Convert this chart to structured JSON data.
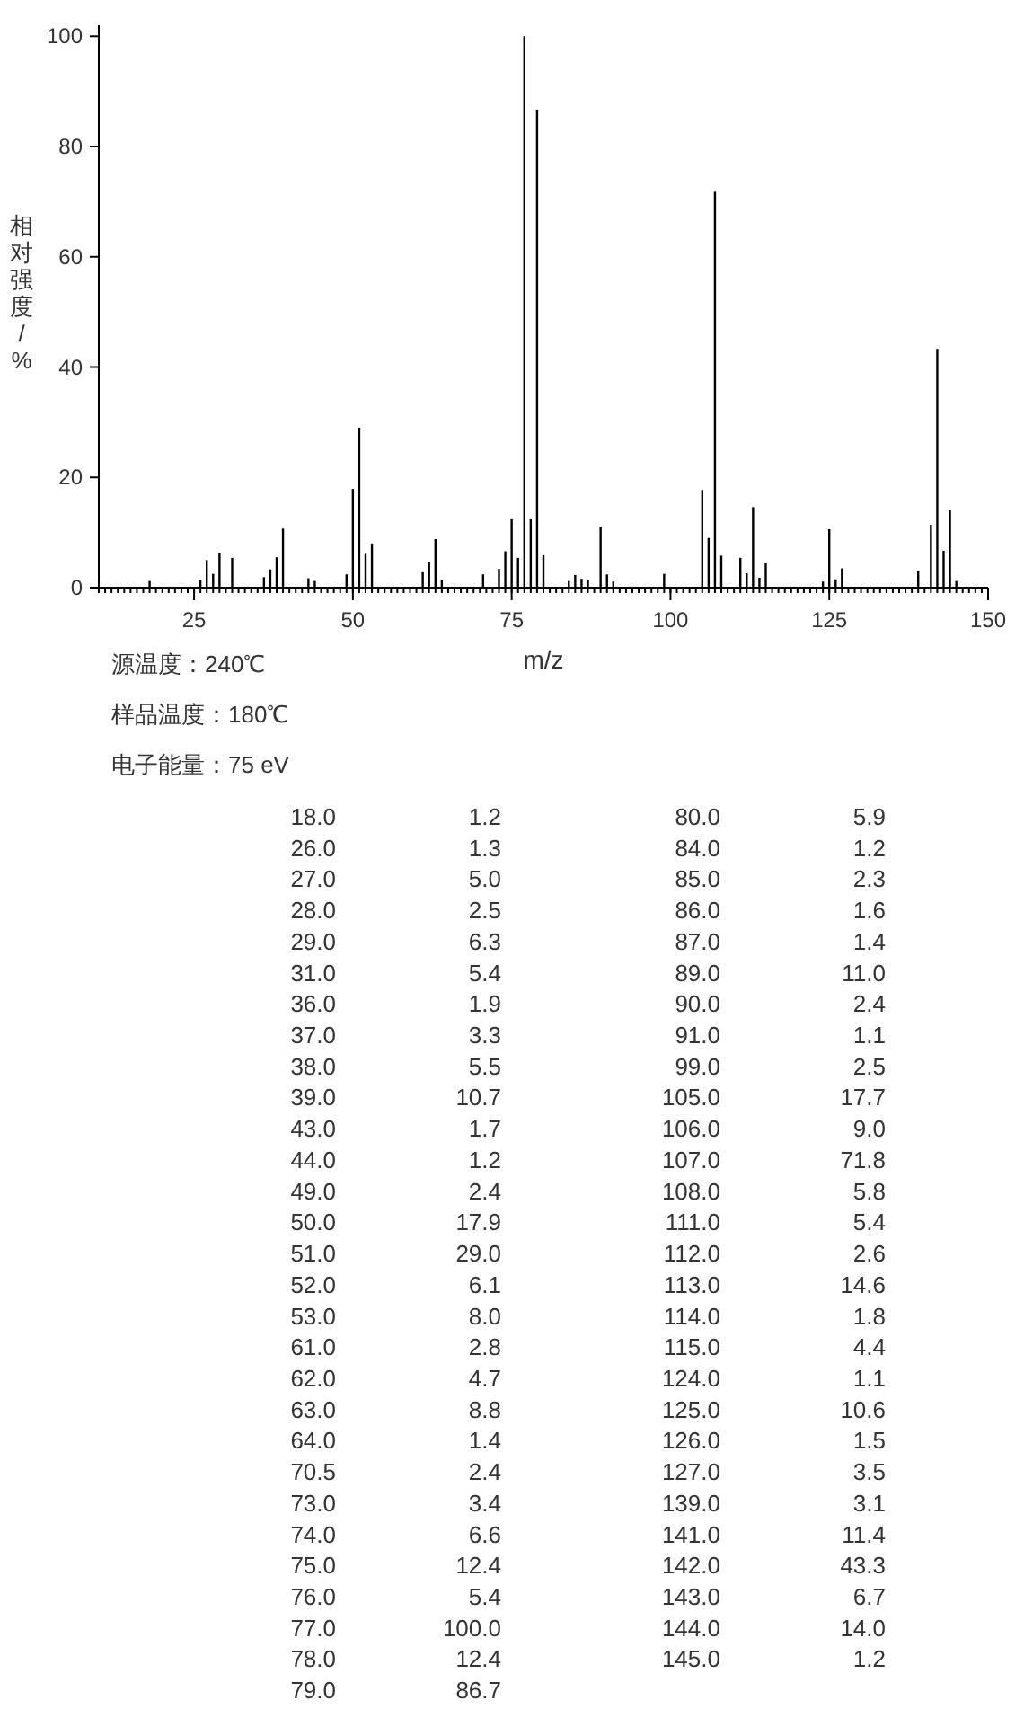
{
  "chart_data": [
    {
      "type": "bar",
      "ylabel": "相对强度/%",
      "xlabel": "m/z",
      "color": "#000000",
      "x": [
        18.0,
        26.0,
        27.0,
        28.0,
        29.0,
        31.0,
        36.0,
        37.0,
        38.0,
        39.0,
        43.0,
        44.0,
        49.0,
        50.0,
        51.0,
        52.0,
        53.0,
        61.0,
        62.0,
        63.0,
        64.0,
        70.5,
        73.0,
        74.0,
        75.0,
        76.0,
        77.0,
        78.0,
        79.0,
        80.0,
        84.0,
        85.0,
        86.0,
        87.0,
        89.0,
        90.0,
        91.0,
        99.0,
        105.0,
        106.0,
        107.0,
        108.0,
        111.0,
        112.0,
        113.0,
        114.0,
        115.0,
        124.0,
        125.0,
        126.0,
        127.0,
        139.0,
        141.0,
        142.0,
        143.0,
        144.0,
        145.0
      ],
      "values": [
        1.2,
        1.3,
        5.0,
        2.5,
        6.3,
        5.4,
        1.9,
        3.3,
        5.5,
        10.7,
        1.7,
        1.2,
        2.4,
        17.9,
        29.0,
        6.1,
        8.0,
        2.8,
        4.7,
        8.8,
        1.4,
        2.4,
        3.4,
        6.6,
        12.4,
        5.4,
        100.0,
        12.4,
        86.7,
        5.9,
        1.2,
        2.3,
        1.6,
        1.4,
        11.0,
        2.4,
        1.1,
        2.5,
        17.7,
        9.0,
        71.8,
        5.8,
        5.4,
        2.6,
        14.6,
        1.8,
        4.4,
        1.1,
        10.6,
        1.5,
        3.5,
        3.1,
        11.4,
        43.3,
        6.7,
        14.0,
        1.2
      ],
      "xlim": [
        10,
        150
      ],
      "ylim": [
        0,
        102
      ],
      "xticks": [
        25,
        50,
        75,
        100,
        125,
        150
      ],
      "yticks": [
        0,
        20,
        40,
        60,
        80,
        100
      ],
      "annotations": [
        "源温度：240℃",
        "样品温度：180℃",
        "电子能量：75 eV"
      ]
    },
    {
      "type": "other",
      "annotations": [
        "18.0",
        "1.2",
        "26.0",
        "1.3",
        "27.0",
        "5.0",
        "28.0",
        "2.5",
        "29.0",
        "6.3",
        "31.0",
        "5.4",
        "36.0",
        "1.9",
        "37.0",
        "3.3",
        "38.0",
        "5.5",
        "39.0",
        "10.7",
        "43.0",
        "1.7",
        "44.0",
        "1.2",
        "49.0",
        "2.4",
        "50.0",
        "17.9",
        "51.0",
        "29.0",
        "52.0",
        "6.1",
        "53.0",
        "8.0",
        "61.0",
        "2.8",
        "62.0",
        "4.7",
        "63.0",
        "8.8",
        "64.0",
        "1.4",
        "70.5",
        "2.4",
        "73.0",
        "3.4",
        "74.0",
        "6.6",
        "75.0",
        "12.4",
        "76.0",
        "5.4",
        "77.0",
        "100.0",
        "78.0",
        "12.4",
        "79.0",
        "86.7",
        "80.0",
        "5.9",
        "84.0",
        "1.2",
        "85.0",
        "2.3",
        "86.0",
        "1.6",
        "87.0",
        "1.4",
        "89.0",
        "11.0",
        "90.0",
        "2.4",
        "91.0",
        "1.1",
        "99.0",
        "2.5",
        "105.0",
        "17.7",
        "106.0",
        "9.0",
        "107.0",
        "71.8",
        "108.0",
        "5.8",
        "111.0",
        "5.4",
        "112.0",
        "2.6",
        "113.0",
        "14.6",
        "114.0",
        "1.8",
        "115.0",
        "4.4",
        "124.0",
        "1.1",
        "125.0",
        "10.6",
        "126.0",
        "1.5",
        "127.0",
        "3.5",
        "139.0",
        "3.1",
        "141.0",
        "11.4",
        "142.0",
        "43.3",
        "143.0",
        "6.7",
        "144.0",
        "14.0",
        "145.0",
        "1.2"
      ]
    }
  ]
}
